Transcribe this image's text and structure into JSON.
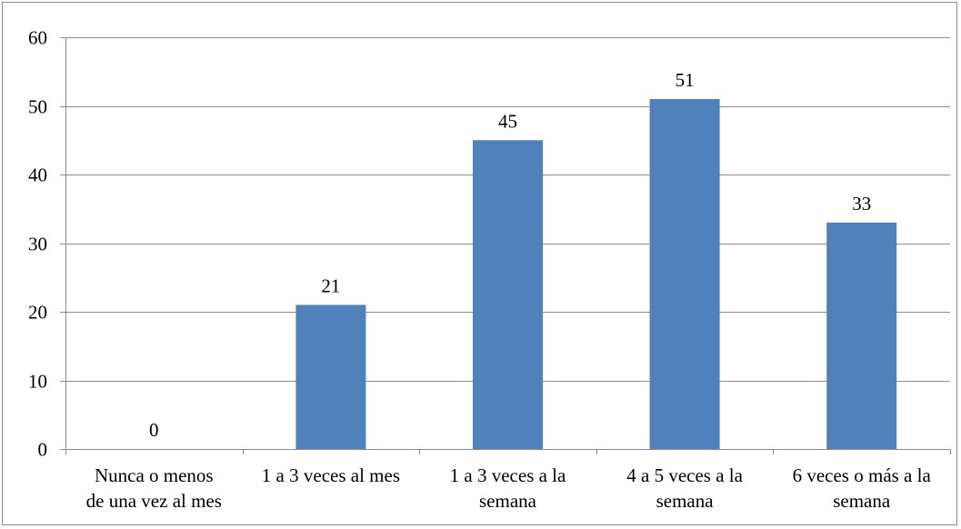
{
  "chart_data": {
    "type": "bar",
    "categories": [
      [
        "Nunca o menos",
        "de una vez al mes"
      ],
      [
        "1 a 3 veces al mes"
      ],
      [
        "1 a 3 veces a la",
        "semana"
      ],
      [
        "4 a 5 veces a la",
        "semana"
      ],
      [
        "6 veces o más a la",
        "semana"
      ]
    ],
    "values": [
      0,
      21,
      45,
      51,
      33
    ],
    "data_labels": [
      "0",
      "21",
      "45",
      "51",
      "33"
    ],
    "ylim": [
      0,
      60
    ],
    "yticks": [
      0,
      10,
      20,
      30,
      40,
      50,
      60
    ],
    "ytick_labels": [
      "0",
      "10",
      "20",
      "30",
      "40",
      "50",
      "60"
    ],
    "grid": true,
    "legend": "none",
    "bar_color": "#4f81bd",
    "grid_color": "#8c8c8c",
    "title": "",
    "xlabel": "",
    "ylabel": ""
  }
}
